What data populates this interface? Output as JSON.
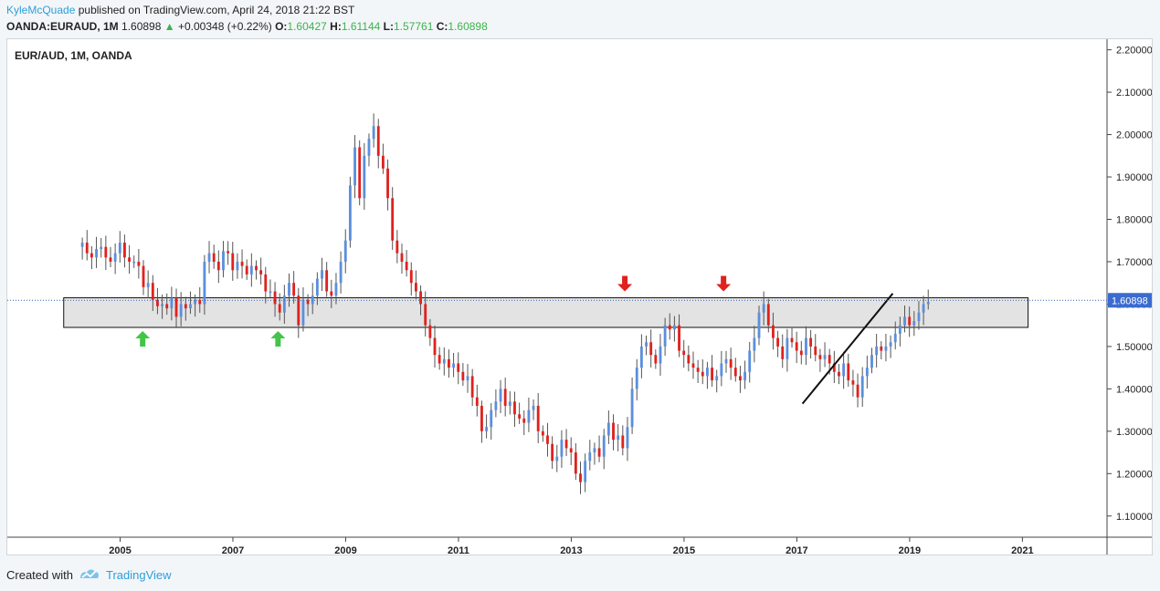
{
  "header": {
    "author": "KyleMcQuade",
    "published_text": "published on TradingView.com, April 24, 2018 21:22 BST",
    "symbol": "OANDA:EURAUD, 1M",
    "price": "1.60898",
    "change": "+0.00348 (+0.22%)",
    "o_label": "O:",
    "o_value": "1.60427",
    "h_label": "H:",
    "h_value": "1.61144",
    "l_label": "L:",
    "l_value": "1.57761",
    "c_label": "C:",
    "c_value": "1.60898"
  },
  "footer": {
    "created_with": "Created with",
    "brand": "TradingView"
  },
  "colors": {
    "up": "#5b8fdd",
    "down": "#e0211d",
    "zone_fill": "#e3e3e3",
    "arrow_up": "#43c548",
    "arrow_down": "#e0211d",
    "price_line": "#2f62b8",
    "trend": "#111111"
  },
  "chart_data": {
    "type": "candlestick",
    "title": "EUR/AUD, 1M, OANDA",
    "ylim": [
      1.05,
      2.225
    ],
    "xlim": [
      2003.0,
      2022.5
    ],
    "y_ticks": [
      "1.10000",
      "1.20000",
      "1.30000",
      "1.40000",
      "1.50000",
      "1.60000",
      "1.70000",
      "1.80000",
      "1.90000",
      "2.00000",
      "2.10000",
      "2.20000"
    ],
    "x_ticks": [
      "2005",
      "2007",
      "2009",
      "2011",
      "2013",
      "2015",
      "2017",
      "2019",
      "2021"
    ],
    "last_price_label": "1.60898",
    "last_price": 1.60898,
    "resistance_zone": {
      "x_start": 2004.0,
      "x_end": 2021.1,
      "low": 1.545,
      "high": 1.615
    },
    "trendline": {
      "x1": 2017.1,
      "y1": 1.365,
      "x2": 2018.7,
      "y2": 1.625
    },
    "support_arrows": [
      {
        "x": 2005.4,
        "y": 1.545
      },
      {
        "x": 2007.8,
        "y": 1.545
      }
    ],
    "resistance_arrows": [
      {
        "x": 2013.95,
        "y": 1.63
      },
      {
        "x": 2015.7,
        "y": 1.63
      }
    ],
    "series": [
      {
        "name": "monthly-close",
        "x_start": 2004.33,
        "x_step": 0.08333,
        "values": [
          1.745,
          1.72,
          1.71,
          1.73,
          1.735,
          1.71,
          1.7,
          1.72,
          1.745,
          1.71,
          1.7,
          1.7,
          1.69,
          1.64,
          1.65,
          1.61,
          1.595,
          1.6,
          1.59,
          1.615,
          1.57,
          1.6,
          1.59,
          1.6,
          1.61,
          1.6,
          1.7,
          1.72,
          1.7,
          1.68,
          1.725,
          1.72,
          1.68,
          1.7,
          1.69,
          1.67,
          1.69,
          1.68,
          1.67,
          1.63,
          1.63,
          1.6,
          1.58,
          1.62,
          1.65,
          1.62,
          1.55,
          1.61,
          1.6,
          1.62,
          1.66,
          1.68,
          1.63,
          1.62,
          1.65,
          1.7,
          1.75,
          1.88,
          1.97,
          1.85,
          1.95,
          1.99,
          2.02,
          1.95,
          1.92,
          1.85,
          1.75,
          1.72,
          1.7,
          1.68,
          1.65,
          1.63,
          1.6,
          1.55,
          1.52,
          1.48,
          1.46,
          1.47,
          1.45,
          1.46,
          1.44,
          1.42,
          1.43,
          1.38,
          1.36,
          1.3,
          1.31,
          1.35,
          1.37,
          1.4,
          1.36,
          1.37,
          1.34,
          1.33,
          1.32,
          1.35,
          1.36,
          1.3,
          1.29,
          1.27,
          1.23,
          1.24,
          1.28,
          1.26,
          1.25,
          1.2,
          1.18,
          1.23,
          1.25,
          1.26,
          1.24,
          1.29,
          1.32,
          1.28,
          1.29,
          1.26,
          1.31,
          1.4,
          1.45,
          1.5,
          1.51,
          1.48,
          1.46,
          1.5,
          1.55,
          1.54,
          1.55,
          1.49,
          1.48,
          1.46,
          1.45,
          1.44,
          1.43,
          1.45,
          1.42,
          1.43,
          1.46,
          1.47,
          1.45,
          1.43,
          1.42,
          1.44,
          1.49,
          1.52,
          1.58,
          1.6,
          1.55,
          1.52,
          1.5,
          1.47,
          1.52,
          1.51,
          1.49,
          1.48,
          1.52,
          1.5,
          1.48,
          1.47,
          1.48,
          1.46,
          1.44,
          1.43,
          1.46,
          1.42,
          1.41,
          1.38,
          1.43,
          1.45,
          1.48,
          1.5,
          1.49,
          1.5,
          1.51,
          1.53,
          1.55,
          1.57,
          1.55,
          1.56,
          1.58,
          1.6,
          1.605
        ]
      }
    ]
  }
}
